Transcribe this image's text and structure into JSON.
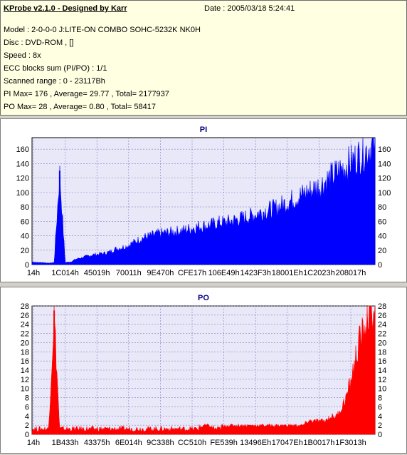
{
  "header": {
    "title": "KProbe v2.1.0 - Designed by Karr",
    "date": "Date : 2005/03/18 5:24:41",
    "model": "Model : 2-0-0-0 J:LITE-ON COMBO SOHC-5232K NK0H",
    "disc": "Disc : DVD-ROM ,  []",
    "speed": "Speed : 8x",
    "ecc": "ECC blocks sum (PI/PO) : 1/1",
    "range": "Scanned range : 0 - 23117Bh",
    "pi_summary": "PI Max= 176 , Average= 29.77 , Total= 2177937",
    "po_summary": "PO Max= 28 , Average= 0.80 , Total= 58417"
  },
  "colors": {
    "pi": "#0000ff",
    "po": "#ff0000",
    "plot_bg": "#e8e8f8",
    "grid": "#8080c0"
  },
  "chart_data": [
    {
      "type": "area",
      "title": "PI",
      "series": [
        {
          "values_description": "PI errors per block",
          "points": [
            [
              0,
              4
            ],
            [
              1,
              3
            ],
            [
              2,
              3
            ],
            [
              3,
              2
            ],
            [
              4,
              3
            ],
            [
              5,
              130
            ],
            [
              6,
              3
            ],
            [
              7,
              4
            ],
            [
              8,
              8
            ],
            [
              9,
              10
            ],
            [
              10,
              12
            ],
            [
              11,
              14
            ],
            [
              12,
              15
            ],
            [
              13,
              16
            ],
            [
              14,
              18
            ],
            [
              15,
              22
            ],
            [
              16,
              24
            ],
            [
              17,
              26
            ],
            [
              18,
              30
            ],
            [
              19,
              34
            ],
            [
              20,
              38
            ],
            [
              21,
              40
            ],
            [
              22,
              42
            ],
            [
              23,
              44
            ],
            [
              24,
              45
            ],
            [
              25,
              46
            ],
            [
              26,
              47
            ],
            [
              27,
              48
            ],
            [
              28,
              50
            ],
            [
              29,
              52
            ],
            [
              30,
              54
            ],
            [
              31,
              55
            ],
            [
              32,
              56
            ],
            [
              33,
              58
            ],
            [
              34,
              60
            ],
            [
              35,
              60
            ],
            [
              36,
              62
            ],
            [
              37,
              64
            ],
            [
              38,
              66
            ],
            [
              39,
              68
            ],
            [
              40,
              70
            ],
            [
              41,
              74
            ],
            [
              42,
              76
            ],
            [
              43,
              78
            ],
            [
              44,
              80
            ],
            [
              45,
              84
            ],
            [
              46,
              88
            ],
            [
              47,
              92
            ],
            [
              48,
              96
            ],
            [
              49,
              100
            ],
            [
              50,
              104
            ],
            [
              51,
              108
            ],
            [
              52,
              112
            ],
            [
              53,
              118
            ],
            [
              54,
              124
            ],
            [
              55,
              130
            ],
            [
              56,
              136
            ],
            [
              57,
              142
            ],
            [
              58,
              148
            ],
            [
              59,
              154
            ],
            [
              60,
              160
            ],
            [
              61,
              166
            ],
            [
              62,
              170
            ]
          ]
        }
      ],
      "x_tick_labels": [
        "14h",
        "1C014h",
        "45019h",
        "70011h",
        "9E470h",
        "CFE17h",
        "106E49h",
        "1423F3h",
        "18001Eh",
        "1C2023h",
        "208017h"
      ],
      "y_tick_labels": [
        "0",
        "20",
        "40",
        "60",
        "80",
        "100",
        "120",
        "140",
        "160"
      ],
      "ylim": [
        0,
        176
      ],
      "grid": "on"
    },
    {
      "type": "area",
      "title": "PO",
      "series": [
        {
          "values_description": "PO errors per block",
          "points": [
            [
              0,
              1
            ],
            [
              1,
              1
            ],
            [
              2,
              1
            ],
            [
              3,
              1
            ],
            [
              4,
              27
            ],
            [
              5,
              1
            ],
            [
              6,
              1
            ],
            [
              7,
              1
            ],
            [
              8,
              1
            ],
            [
              9,
              1
            ],
            [
              10,
              1
            ],
            [
              11,
              1
            ],
            [
              12,
              1
            ],
            [
              13,
              1
            ],
            [
              14,
              1
            ],
            [
              15,
              1
            ],
            [
              16,
              1
            ],
            [
              17,
              1
            ],
            [
              18,
              1
            ],
            [
              19,
              1
            ],
            [
              20,
              1
            ],
            [
              21,
              1
            ],
            [
              22,
              1
            ],
            [
              23,
              1
            ],
            [
              24,
              1
            ],
            [
              25,
              1
            ],
            [
              26,
              1
            ],
            [
              27,
              1
            ],
            [
              28,
              1
            ],
            [
              29,
              1
            ],
            [
              30,
              1
            ],
            [
              31,
              2
            ],
            [
              32,
              2
            ],
            [
              33,
              1
            ],
            [
              34,
              1
            ],
            [
              35,
              2
            ],
            [
              36,
              2
            ],
            [
              37,
              2
            ],
            [
              38,
              2
            ],
            [
              39,
              2
            ],
            [
              40,
              2
            ],
            [
              41,
              2
            ],
            [
              42,
              2
            ],
            [
              43,
              2
            ],
            [
              44,
              2
            ],
            [
              45,
              2
            ],
            [
              46,
              2
            ],
            [
              47,
              2
            ],
            [
              48,
              2
            ],
            [
              49,
              2
            ],
            [
              50,
              3
            ],
            [
              51,
              3
            ],
            [
              52,
              3
            ],
            [
              53,
              3
            ],
            [
              54,
              4
            ],
            [
              55,
              4
            ],
            [
              56,
              6
            ],
            [
              57,
              9
            ],
            [
              58,
              14
            ],
            [
              59,
              20
            ],
            [
              60,
              24
            ],
            [
              61,
              28
            ],
            [
              62,
              28
            ]
          ]
        }
      ],
      "x_tick_labels": [
        "14h",
        "1B433h",
        "43375h",
        "6E014h",
        "9C338h",
        "CC510h",
        "FE539h",
        "13496Eh",
        "17047Eh",
        "1B0017h",
        "1F3013h"
      ],
      "y_tick_labels": [
        "0",
        "2",
        "4",
        "6",
        "8",
        "10",
        "12",
        "14",
        "16",
        "18",
        "20",
        "22",
        "24",
        "26",
        "28"
      ],
      "ylim": [
        0,
        28
      ],
      "grid": "on"
    }
  ]
}
